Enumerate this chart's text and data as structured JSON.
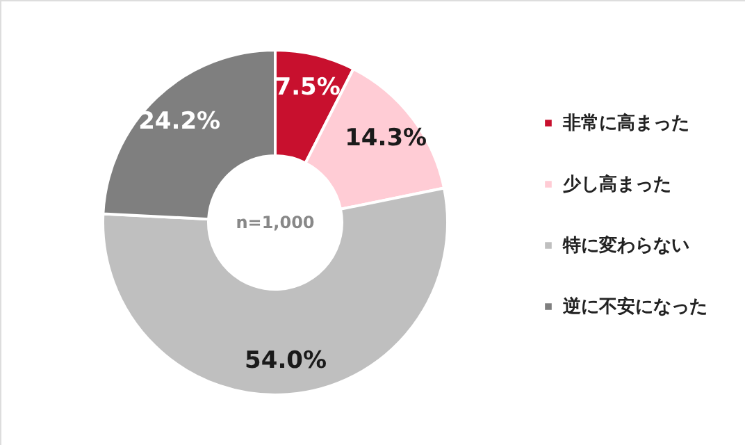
{
  "chart_data": {
    "type": "donut",
    "categories": [
      "非常に高まった",
      "少し高まった",
      "特に変わらない",
      "逆に不安になった"
    ],
    "values": [
      7.5,
      14.3,
      54.0,
      24.2
    ],
    "value_labels": [
      "7.5%",
      "14.3%",
      "54.0%",
      "24.2%"
    ],
    "colors": [
      "#c8102e",
      "#ffccd5",
      "#bfbfbf",
      "#7f7f7f"
    ],
    "annotations": [
      "n=1,000"
    ],
    "legend": "right"
  }
}
